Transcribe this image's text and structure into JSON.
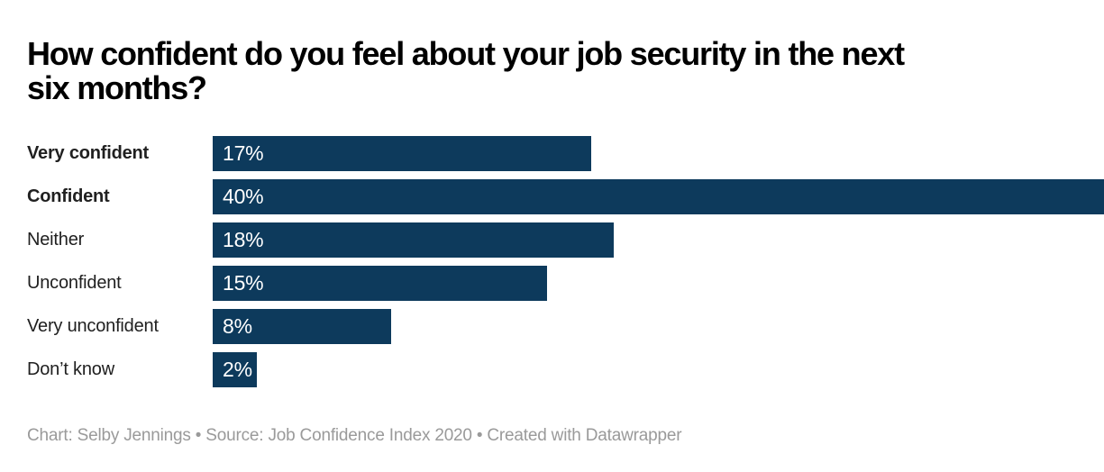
{
  "chart": {
    "title": "How confident do you feel about your job security in the next\nsix months?",
    "footer": "Chart: Selby Jennings • Source: Job Confidence Index 2020 • Created with Datawrapper"
  },
  "chart_data": {
    "type": "bar",
    "orientation": "horizontal",
    "title": "How confident do you feel about your job security in the next six months?",
    "categories": [
      "Very confident",
      "Confident",
      "Neither",
      "Unconfident",
      "Very unconfident",
      "Don’t know"
    ],
    "values": [
      17,
      40,
      18,
      15,
      8,
      2
    ],
    "value_labels": [
      "17%",
      "40%",
      "18%",
      "15%",
      "8%",
      "2%"
    ],
    "bold_rows": [
      true,
      true,
      false,
      false,
      false,
      false
    ],
    "xlim": [
      0,
      40
    ],
    "xlabel": "",
    "ylabel": "",
    "grid": false,
    "legend": "none",
    "value_label_position": "inside-left",
    "bar_color": "#0d3a5c",
    "value_label_color": "#ffffff",
    "category_label_color": "#202020",
    "background_color": "#ffffff",
    "footer": "Chart: Selby Jennings • Source: Job Confidence Index 2020 • Created with Datawrapper"
  }
}
